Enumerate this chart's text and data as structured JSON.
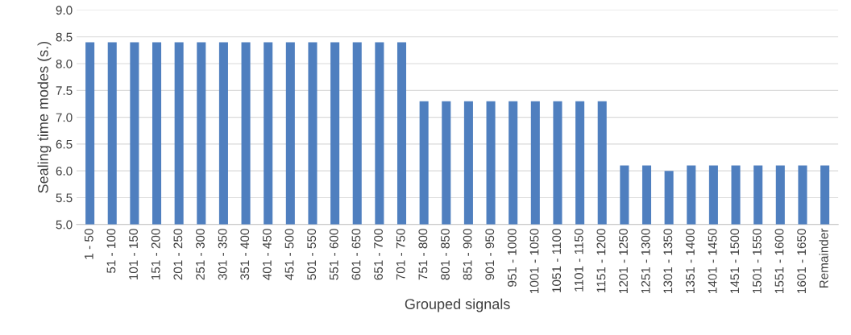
{
  "chart_data": {
    "type": "bar",
    "xlabel": "Grouped signals",
    "ylabel": "Sealing time modes (s.)",
    "categories": [
      "1 - 50",
      "51 - 100",
      "101 - 150",
      "151 - 200",
      "201 - 250",
      "251 - 300",
      "301 - 350",
      "351 - 400",
      "401 - 450",
      "451 - 500",
      "501 - 550",
      "551 - 600",
      "601 - 650",
      "651 - 700",
      "701 - 750",
      "751 - 800",
      "801 - 850",
      "851 - 900",
      "901 - 950",
      "951 - 1000",
      "1001 - 1050",
      "1051 - 1100",
      "1101 - 1150",
      "1151 - 1200",
      "1201 - 1250",
      "1251 - 1300",
      "1301 - 1350",
      "1351 - 1400",
      "1401 - 1450",
      "1451 - 1500",
      "1501 - 1550",
      "1551 - 1600",
      "1601 - 1650",
      "Remainder"
    ],
    "values": [
      8.4,
      8.4,
      8.4,
      8.4,
      8.4,
      8.4,
      8.4,
      8.4,
      8.4,
      8.4,
      8.4,
      8.4,
      8.4,
      8.4,
      8.4,
      7.3,
      7.3,
      7.3,
      7.3,
      7.3,
      7.3,
      7.3,
      7.3,
      7.3,
      6.1,
      6.1,
      6.0,
      6.1,
      6.1,
      6.1,
      6.1,
      6.1,
      6.1,
      6.1
    ],
    "color": "#4f7fbf",
    "ylim": [
      5.0,
      9.0
    ],
    "yticks": [
      {
        "value": 5.0,
        "label": "5.0"
      },
      {
        "value": 5.5,
        "label": "5.5"
      },
      {
        "value": 6.0,
        "label": "6.0"
      },
      {
        "value": 6.5,
        "label": "6.5"
      },
      {
        "value": 7.0,
        "label": "7.0"
      },
      {
        "value": 7.5,
        "label": "7.5"
      },
      {
        "value": 8.0,
        "label": "8.0"
      },
      {
        "value": 8.5,
        "label": "8.5"
      },
      {
        "value": 9.0,
        "label": "9.0"
      }
    ],
    "grid": "y",
    "legend": false
  }
}
